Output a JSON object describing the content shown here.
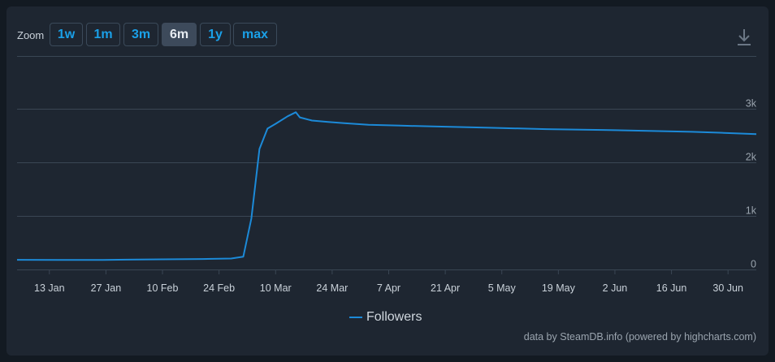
{
  "toolbar": {
    "zoom_label": "Zoom",
    "buttons": [
      {
        "label": "1w",
        "active": false
      },
      {
        "label": "1m",
        "active": false
      },
      {
        "label": "3m",
        "active": false
      },
      {
        "label": "6m",
        "active": true
      },
      {
        "label": "1y",
        "active": false
      },
      {
        "label": "max",
        "active": false
      }
    ],
    "download_icon": "download-icon"
  },
  "colors": {
    "series": "#1c8ad8",
    "background": "#1e2631",
    "grid": "#3a4654"
  },
  "chart_data": {
    "type": "line",
    "title": "",
    "xlabel": "",
    "ylabel": "",
    "x_ticks": [
      "13 Jan",
      "27 Jan",
      "10 Feb",
      "24 Feb",
      "10 Mar",
      "24 Mar",
      "7 Apr",
      "21 Apr",
      "5 May",
      "19 May",
      "2 Jun",
      "16 Jun",
      "30 Jun"
    ],
    "y_ticks": [
      "0",
      "1k",
      "2k",
      "3k"
    ],
    "ylim": [
      0,
      3000
    ],
    "xlim": [
      "2024-01-05",
      "2024-07-06"
    ],
    "grid": true,
    "legend_position": "bottom-center",
    "series": [
      {
        "name": "Followers",
        "points": [
          [
            "2024-01-05",
            180
          ],
          [
            "2024-01-15",
            178
          ],
          [
            "2024-01-25",
            178
          ],
          [
            "2024-02-01",
            183
          ],
          [
            "2024-02-10",
            190
          ],
          [
            "2024-02-20",
            195
          ],
          [
            "2024-02-27",
            205
          ],
          [
            "2024-03-01",
            240
          ],
          [
            "2024-03-03",
            950
          ],
          [
            "2024-03-05",
            2250
          ],
          [
            "2024-03-07",
            2630
          ],
          [
            "2024-03-09",
            2720
          ],
          [
            "2024-03-12",
            2860
          ],
          [
            "2024-03-14",
            2935
          ],
          [
            "2024-03-15",
            2840
          ],
          [
            "2024-03-18",
            2780
          ],
          [
            "2024-03-22",
            2755
          ],
          [
            "2024-03-26",
            2730
          ],
          [
            "2024-04-01",
            2700
          ],
          [
            "2024-04-09",
            2685
          ],
          [
            "2024-04-17",
            2670
          ],
          [
            "2024-05-01",
            2645
          ],
          [
            "2024-05-15",
            2620
          ],
          [
            "2024-05-29",
            2605
          ],
          [
            "2024-06-08",
            2590
          ],
          [
            "2024-06-20",
            2570
          ],
          [
            "2024-06-28",
            2550
          ],
          [
            "2024-07-06",
            2525
          ]
        ]
      }
    ]
  },
  "credits": "data by SteamDB.info (powered by highcharts.com)"
}
